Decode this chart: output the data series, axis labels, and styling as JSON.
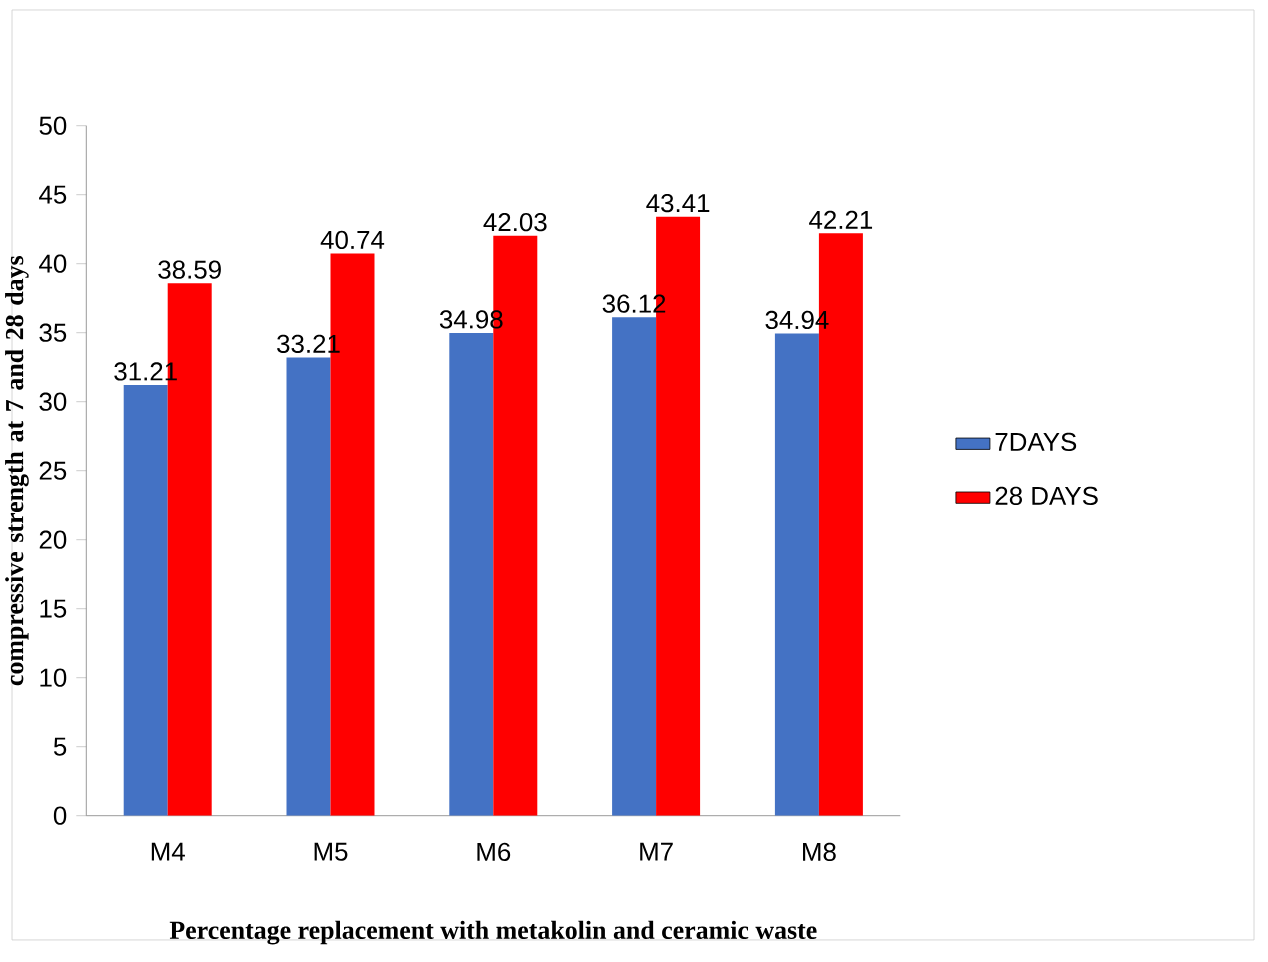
{
  "chart_data": {
    "type": "bar",
    "xlabel": "Percentage replacement with metakolin and ceramic waste",
    "ylabel": "compressive strength at 7 and 28 days",
    "categories": [
      "M4",
      "M5",
      "M6",
      "M7",
      "M8"
    ],
    "series": [
      {
        "name": "7DAYS",
        "color": "#4472c4",
        "values": [
          31.21,
          33.21,
          34.98,
          36.12,
          34.94
        ]
      },
      {
        "name": "28 DAYS",
        "color": "#ff0000",
        "values": [
          38.59,
          40.74,
          42.03,
          43.41,
          42.21
        ]
      }
    ],
    "ylim": [
      0,
      50
    ],
    "yticks": [
      0,
      5,
      10,
      15,
      20,
      25,
      30,
      35,
      40,
      45,
      50
    ],
    "data_labels": true,
    "grid": false,
    "legend": "right"
  }
}
